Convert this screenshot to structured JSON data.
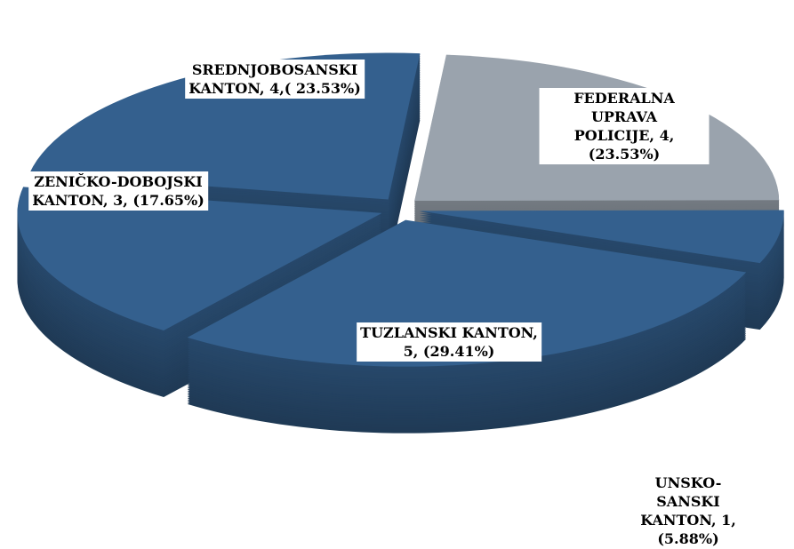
{
  "chart_data": {
    "type": "pie3d",
    "values": [
      4,
      1,
      5,
      3,
      4
    ],
    "value_labels": [
      "FEDERALNA UPRAVA\nPOLICIJE, 4, (23.53%)",
      "UNSKO-SANSKI\nKANTON, 1, (5.88%)",
      "TUZLANSKI KANTON,\n5, (29.41%)",
      "ZENIČKO-DOBOJSKI\nKANTON, 3, (17.65%)",
      "SREDNJOBOSANSKI\nKANTON, 4,( 23.53%)"
    ],
    "colors": [
      "#9aa3ad",
      "#34608e",
      "#34608e",
      "#34608e",
      "#34608e"
    ]
  }
}
